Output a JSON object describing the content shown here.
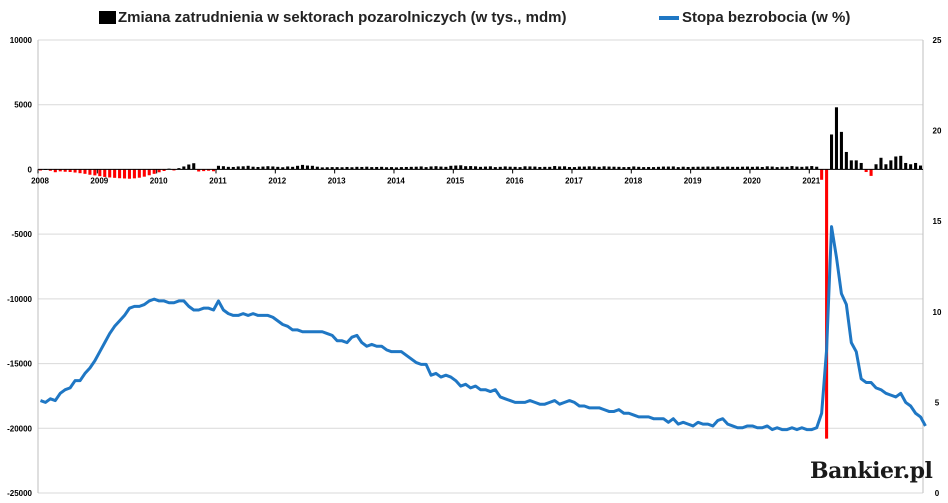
{
  "chart_data": {
    "type": "bar+line",
    "title": "",
    "legend": [
      {
        "name": "Zmiana zatrudnienia w sektorach pozarolniczych (w tys., mdm)",
        "kind": "bar",
        "color": "#000000",
        "negative_color": "#ff0000"
      },
      {
        "name": "Stopa bezrobocia (w %)",
        "kind": "line",
        "color": "#1f77c4"
      }
    ],
    "legend_position": "top",
    "grid": "horizontal",
    "y_left": {
      "ylim": [
        -25000,
        10000
      ],
      "ticks": [
        "10000",
        "5000",
        "0",
        "-5000",
        "-10000",
        "-15000",
        "-20000",
        "-25000"
      ]
    },
    "y_right": {
      "ylim": [
        0,
        25
      ],
      "ticks": [
        "25",
        "20",
        "15",
        "10",
        "5",
        "0"
      ]
    },
    "x_labels": [
      "2008",
      "2009",
      "2010",
      "2011",
      "2012",
      "2013",
      "2014",
      "2015",
      "2016",
      "2017",
      "2018",
      "2019",
      "2020",
      "2021"
    ],
    "x_start": "2008-01",
    "series": [
      {
        "name": "Zmiana zatrudnienia w sektorach pozarolniczych (w tys., mdm)",
        "axis": "left",
        "values": [
          -84,
          24,
          -104,
          -215,
          -150,
          -180,
          -200,
          -240,
          -290,
          -340,
          -410,
          -460,
          -520,
          -580,
          -620,
          -650,
          -680,
          -700,
          -720,
          -690,
          -640,
          -560,
          -450,
          -340,
          -220,
          -120,
          60,
          -80,
          100,
          230,
          380,
          480,
          -160,
          -130,
          -100,
          -140,
          280,
          250,
          200,
          190,
          230,
          240,
          280,
          210,
          190,
          220,
          250,
          230,
          200,
          170,
          230,
          200,
          280,
          350,
          300,
          280,
          210,
          160,
          170,
          180,
          180,
          170,
          190,
          170,
          200,
          190,
          210,
          180,
          190,
          200,
          170,
          180,
          160,
          180,
          190,
          200,
          210,
          230,
          180,
          230,
          250,
          220,
          200,
          280,
          300,
          320,
          250,
          260,
          240,
          200,
          220,
          240,
          180,
          200,
          230,
          210,
          200,
          180,
          240,
          230,
          220,
          190,
          200,
          200,
          260,
          230,
          240,
          190,
          180,
          220,
          220,
          240,
          230,
          200,
          240,
          220,
          210,
          200,
          180,
          190,
          230,
          200,
          180,
          190,
          180,
          200,
          220,
          220,
          230,
          180,
          210,
          190,
          200,
          210,
          210,
          220,
          200,
          230,
          200,
          220,
          200,
          200,
          210,
          220,
          200,
          220,
          190,
          240,
          220,
          180,
          210,
          200,
          260,
          220,
          200,
          230,
          260,
          210,
          -800,
          -20800,
          2700,
          4800,
          2900,
          1350,
          700,
          700,
          500,
          -200,
          -500,
          400,
          900,
          400,
          700,
          1000,
          1050,
          500,
          400,
          500,
          300
        ]
      },
      {
        "name": "Stopa bezrobocia (w %)",
        "axis": "right",
        "values": [
          5.1,
          5.0,
          5.2,
          5.1,
          5.5,
          5.7,
          5.8,
          6.2,
          6.2,
          6.6,
          6.9,
          7.3,
          7.8,
          8.3,
          8.8,
          9.2,
          9.5,
          9.8,
          10.2,
          10.3,
          10.3,
          10.4,
          10.6,
          10.7,
          10.6,
          10.6,
          10.5,
          10.5,
          10.6,
          10.6,
          10.3,
          10.1,
          10.1,
          10.2,
          10.2,
          10.1,
          10.6,
          10.1,
          9.9,
          9.8,
          9.8,
          9.9,
          9.8,
          9.9,
          9.8,
          9.8,
          9.8,
          9.7,
          9.5,
          9.3,
          9.2,
          9.0,
          9.0,
          8.9,
          8.9,
          8.9,
          8.9,
          8.9,
          8.8,
          8.7,
          8.4,
          8.4,
          8.3,
          8.6,
          8.7,
          8.3,
          8.1,
          8.2,
          8.1,
          8.1,
          7.9,
          7.8,
          7.8,
          7.8,
          7.6,
          7.4,
          7.2,
          7.1,
          7.1,
          6.5,
          6.6,
          6.4,
          6.5,
          6.4,
          6.2,
          5.9,
          6.0,
          5.8,
          5.9,
          5.7,
          5.7,
          5.6,
          5.7,
          5.3,
          5.2,
          5.1,
          5.0,
          5.0,
          5.0,
          5.1,
          5.0,
          4.9,
          4.9,
          5.0,
          5.1,
          4.9,
          5.0,
          5.1,
          5.0,
          4.8,
          4.8,
          4.7,
          4.7,
          4.7,
          4.6,
          4.5,
          4.5,
          4.6,
          4.4,
          4.4,
          4.3,
          4.2,
          4.2,
          4.2,
          4.1,
          4.1,
          4.1,
          3.9,
          4.1,
          3.8,
          3.9,
          3.8,
          3.7,
          3.9,
          3.8,
          3.8,
          3.7,
          4.0,
          4.1,
          3.8,
          3.7,
          3.6,
          3.6,
          3.7,
          3.7,
          3.6,
          3.6,
          3.7,
          3.5,
          3.6,
          3.5,
          3.5,
          3.6,
          3.5,
          3.6,
          3.5,
          3.5,
          3.6,
          4.4,
          7.9,
          14.7,
          13.0,
          11.0,
          10.4,
          8.3,
          7.8,
          6.3,
          6.1,
          6.1,
          5.8,
          5.7,
          5.5,
          5.4,
          5.3,
          5.5,
          5.0,
          4.8,
          4.4,
          4.2,
          3.7
        ]
      }
    ]
  },
  "brand": {
    "text": "Bankier.pl"
  }
}
